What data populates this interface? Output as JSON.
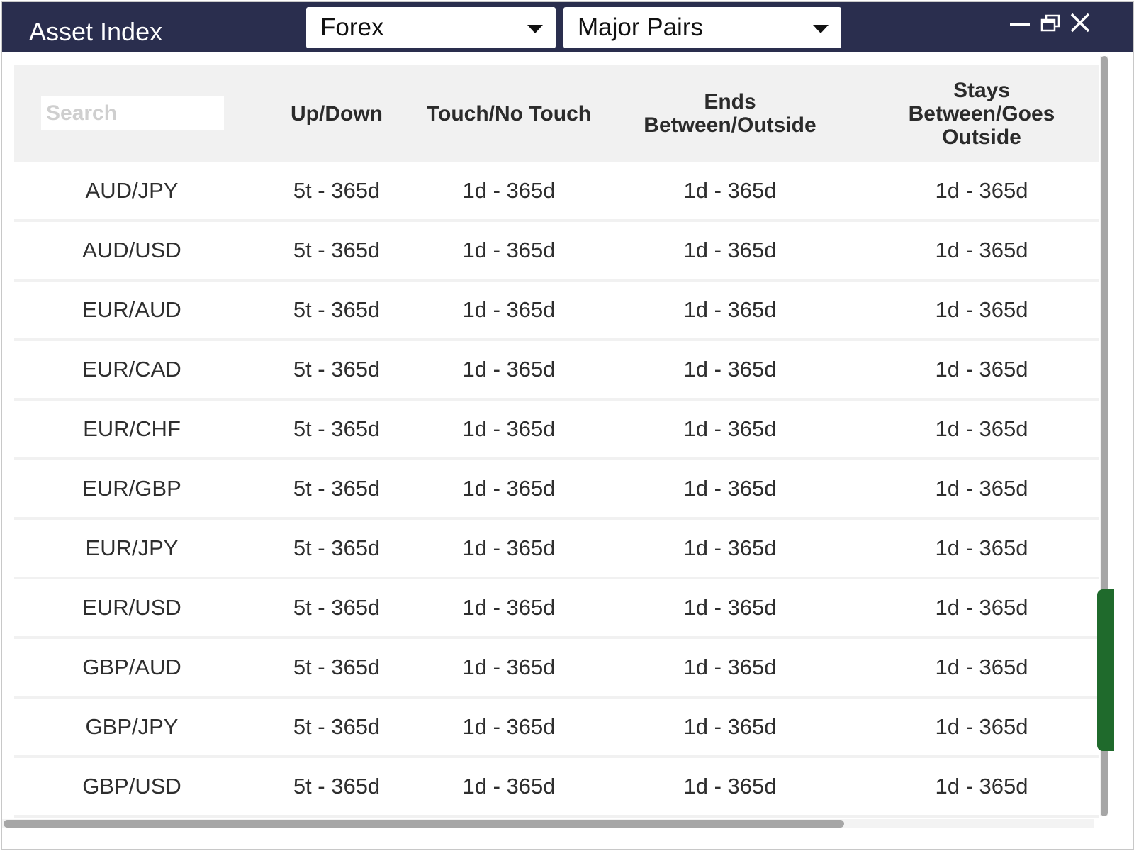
{
  "window": {
    "title": "Asset Index"
  },
  "filters": {
    "market": "Forex",
    "submarket": "Major Pairs"
  },
  "controls": {
    "minimize_icon": "minimize-icon",
    "restore_icon": "restore-icon",
    "close_icon": "close-icon"
  },
  "table": {
    "search_placeholder": "Search",
    "columns": [
      "Up/Down",
      "Touch/No Touch",
      "Ends Between/Outside",
      "Stays Between/Goes Outside"
    ],
    "rows": [
      [
        "AUD/JPY",
        "5t - 365d",
        "1d - 365d",
        "1d - 365d",
        "1d - 365d"
      ],
      [
        "AUD/USD",
        "5t - 365d",
        "1d - 365d",
        "1d - 365d",
        "1d - 365d"
      ],
      [
        "EUR/AUD",
        "5t - 365d",
        "1d - 365d",
        "1d - 365d",
        "1d - 365d"
      ],
      [
        "EUR/CAD",
        "5t - 365d",
        "1d - 365d",
        "1d - 365d",
        "1d - 365d"
      ],
      [
        "EUR/CHF",
        "5t - 365d",
        "1d - 365d",
        "1d - 365d",
        "1d - 365d"
      ],
      [
        "EUR/GBP",
        "5t - 365d",
        "1d - 365d",
        "1d - 365d",
        "1d - 365d"
      ],
      [
        "EUR/JPY",
        "5t - 365d",
        "1d - 365d",
        "1d - 365d",
        "1d - 365d"
      ],
      [
        "EUR/USD",
        "5t - 365d",
        "1d - 365d",
        "1d - 365d",
        "1d - 365d"
      ],
      [
        "GBP/AUD",
        "5t - 365d",
        "1d - 365d",
        "1d - 365d",
        "1d - 365d"
      ],
      [
        "GBP/JPY",
        "5t - 365d",
        "1d - 365d",
        "1d - 365d",
        "1d - 365d"
      ],
      [
        "GBP/USD",
        "5t - 365d",
        "1d - 365d",
        "1d - 365d",
        "1d - 365d"
      ]
    ]
  },
  "colors": {
    "titlebar": "#2a2e4e",
    "header_bg": "#f1f1f1",
    "side_tab": "#1f6a2c"
  }
}
